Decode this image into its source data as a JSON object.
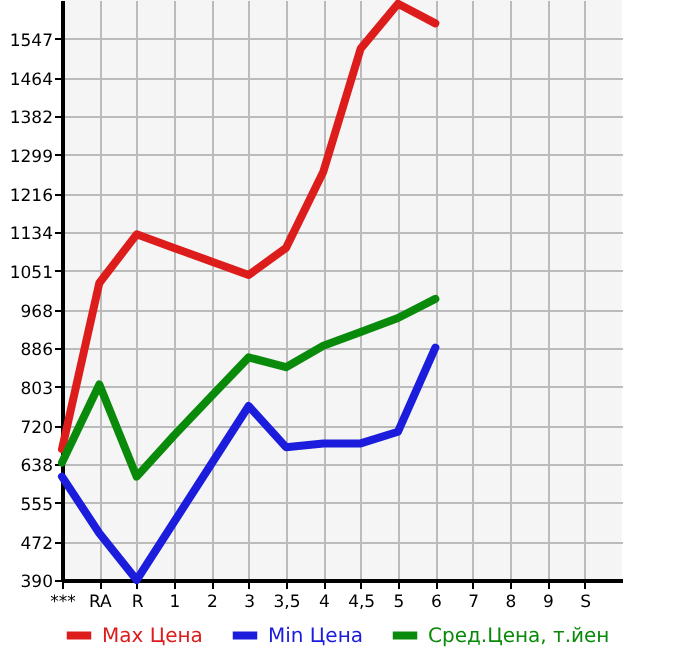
{
  "chart_data": {
    "type": "line",
    "categories": [
      "***",
      "RA",
      "R",
      "1",
      "2",
      "3",
      "3,5",
      "4",
      "4,5",
      "5",
      "6",
      "7",
      "8",
      "9",
      "S"
    ],
    "series": [
      {
        "name": "Max Цена",
        "color": "#dd1c1c",
        "values": [
          670,
          1025,
          1129,
          1100,
          1071,
          1042,
          1100,
          1263,
          1526,
          1622,
          1580,
          null,
          null,
          null,
          null
        ]
      },
      {
        "name": "Min Цена",
        "color": "#1c1cdd",
        "values": [
          611,
          490,
          390,
          514,
          638,
          762,
          674,
          682,
          682,
          707,
          887,
          null,
          null,
          null,
          null
        ]
      },
      {
        "name": "Сред.Цена, т.йен",
        "color": "#0a8a0a",
        "values": [
          641,
          808,
          611,
          699,
          783,
          866,
          845,
          891,
          920,
          950,
          991,
          null,
          null,
          null,
          null
        ]
      }
    ],
    "ylim": [
      390,
      1630
    ],
    "yticks": [
      390,
      472,
      555,
      638,
      720,
      803,
      886,
      968,
      1051,
      1134,
      1216,
      1299,
      1382,
      1464,
      1547
    ],
    "grid": true,
    "legend": "bottom",
    "marker": "none",
    "line_style": "solid"
  }
}
